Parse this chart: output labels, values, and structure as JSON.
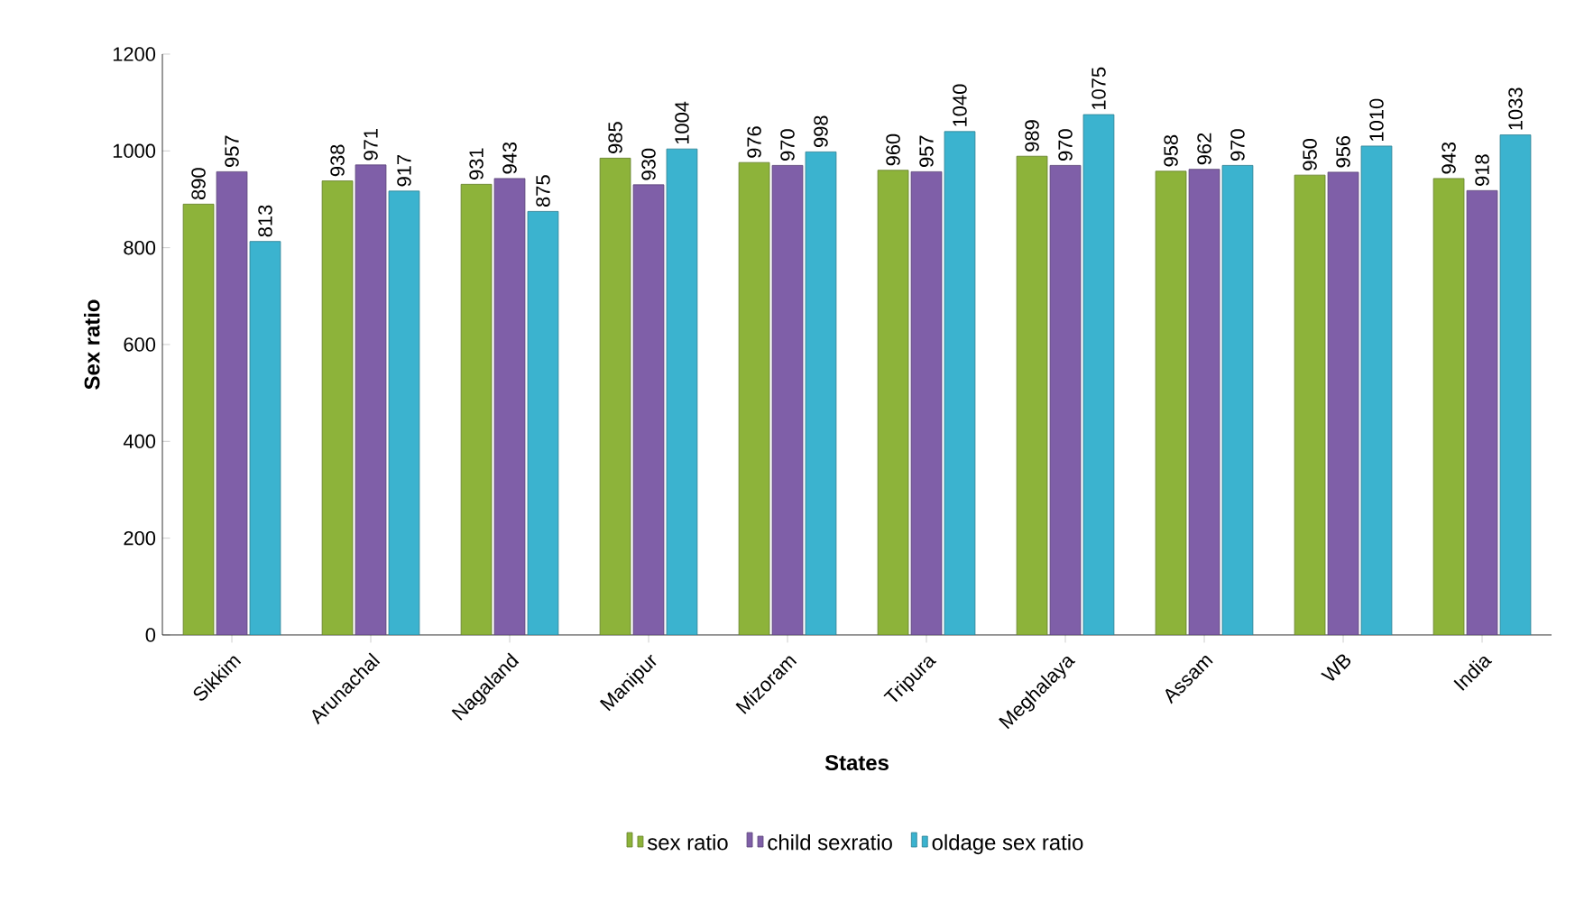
{
  "chart_data": {
    "type": "bar",
    "xlabel": "States",
    "ylabel": "Sex ratio",
    "categories": [
      "Sikkim",
      "Arunachal",
      "Nagaland",
      "Manipur",
      "Mizoram",
      "Tripura",
      "Meghalaya",
      "Assam",
      "WB",
      "India"
    ],
    "series": [
      {
        "name": "sex ratio",
        "color": "#8db33a",
        "values": [
          890,
          938,
          931,
          985,
          976,
          960,
          989,
          958,
          950,
          943
        ]
      },
      {
        "name": "child sexratio",
        "color": "#7f5fa8",
        "values": [
          957,
          971,
          943,
          930,
          970,
          957,
          970,
          962,
          956,
          918
        ]
      },
      {
        "name": "oldage sex ratio",
        "color": "#3bb3cf",
        "values": [
          813,
          917,
          875,
          1004,
          998,
          1040,
          1075,
          970,
          1010,
          1033
        ]
      }
    ],
    "ylim": [
      0,
      1200
    ],
    "yticks": [
      0,
      200,
      400,
      600,
      800,
      1000,
      1200
    ],
    "data_labels": true,
    "legend": "bottom",
    "grid": false
  }
}
